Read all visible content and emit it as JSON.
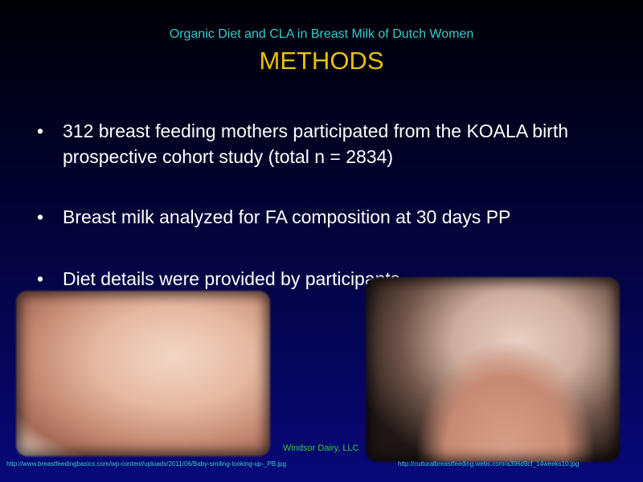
{
  "slide": {
    "subtitle": "Organic Diet and CLA in Breast Milk of Dutch Women",
    "title": "METHODS",
    "bullets": [
      "312 breast feeding mothers participated from the KOALA birth prospective cohort study (total n = 2834)",
      "Breast milk analyzed for FA composition at 30 days PP",
      "Diet details were provided by participants"
    ],
    "credit": "Windsor Dairy, LLC",
    "image_sources": [
      "http://www.breastfeedingbasics.com/wp-content/uploads/2011/06/Baby-smiling-looking-up-_PB.jpg",
      "http://culturalbreastfeeding.webs.com/a396d9cf_14weeks10.jpg"
    ]
  }
}
